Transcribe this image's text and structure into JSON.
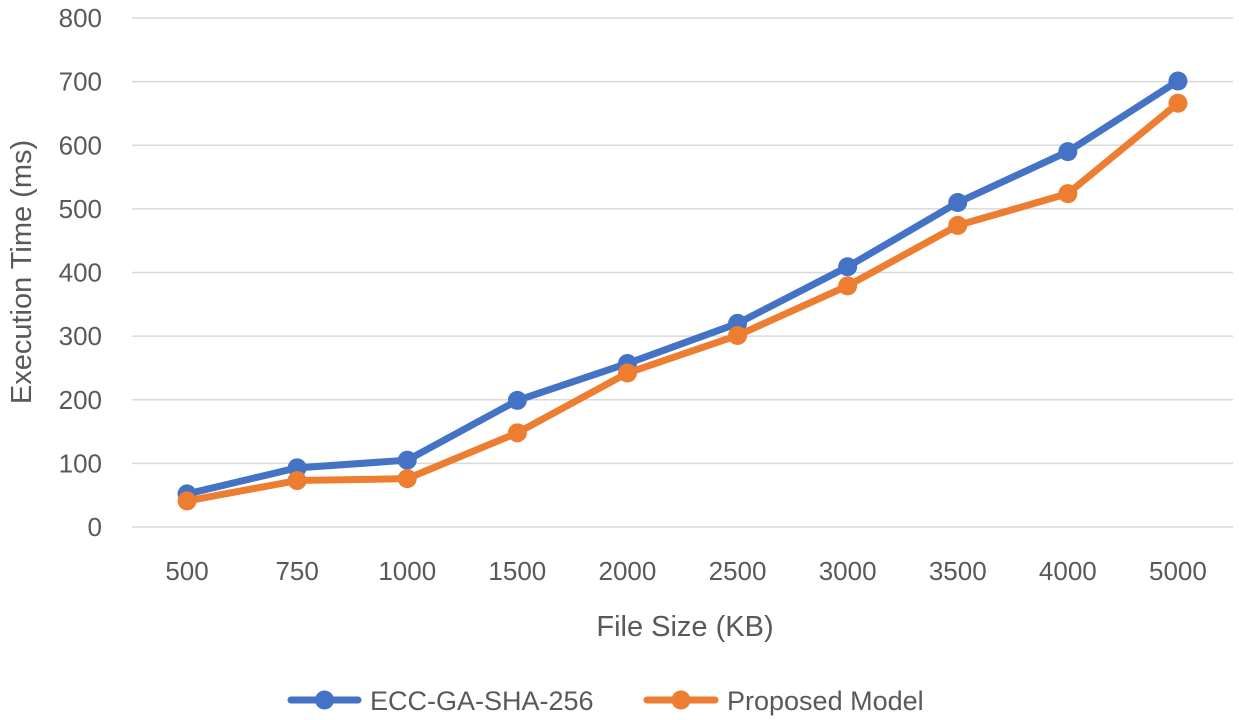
{
  "chart_data": {
    "type": "line",
    "title": "",
    "xlabel": "File Size (KB)",
    "ylabel": "Execution Time (ms)",
    "categories": [
      "500",
      "750",
      "1000",
      "1500",
      "2000",
      "2500",
      "3000",
      "3500",
      "4000",
      "5000"
    ],
    "ylim": [
      0,
      800
    ],
    "yticks": [
      0,
      100,
      200,
      300,
      400,
      500,
      600,
      700,
      800
    ],
    "grid": true,
    "legend_position": "bottom",
    "series": [
      {
        "name": "ECC-GA-SHA-256",
        "color": "#4472c4",
        "values": [
          52,
          93,
          105,
          199,
          257,
          320,
          409,
          510,
          590,
          701
        ]
      },
      {
        "name": "Proposed Model",
        "color": "#ed7d31",
        "values": [
          41,
          73,
          76,
          148,
          242,
          301,
          379,
          474,
          524,
          666
        ]
      }
    ]
  }
}
